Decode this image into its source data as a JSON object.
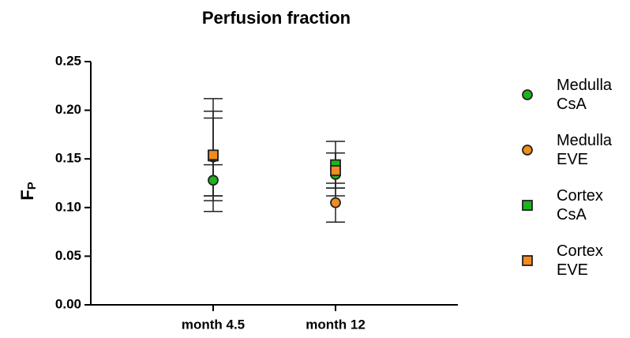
{
  "chart_data": {
    "type": "scatter",
    "title": "Perfusion fraction",
    "ylabel": "F",
    "ylabel_sub": "P",
    "categories": [
      "month 4.5",
      "month 12"
    ],
    "ylim": [
      0,
      0.25
    ],
    "yticks": [
      {
        "value": 0,
        "label": "0.00"
      },
      0.05,
      {
        "value": 0.1,
        "label": "0.10"
      },
      0.15,
      {
        "value": 0.2,
        "label": "0.20"
      },
      0.25
    ],
    "series": [
      {
        "name": "Medulla CsA",
        "marker": "circle",
        "color": "#1db31d",
        "values": [
          0.128,
          0.134
        ],
        "errors": [
          0.016,
          0.022
        ]
      },
      {
        "name": "Medulla EVE",
        "marker": "circle",
        "color": "#f08c1e",
        "values": [
          0.152,
          0.105
        ],
        "errors": [
          0.04,
          0.02
        ]
      },
      {
        "name": "Cortex CsA",
        "marker": "square",
        "color": "#1db31d",
        "values": [
          0.153,
          0.144
        ],
        "errors": [
          0.046,
          0.024
        ]
      },
      {
        "name": "Cortex EVE",
        "marker": "square",
        "color": "#f08c1e",
        "values": [
          0.154,
          0.138
        ],
        "errors": [
          0.058,
          0.018
        ]
      }
    ]
  }
}
